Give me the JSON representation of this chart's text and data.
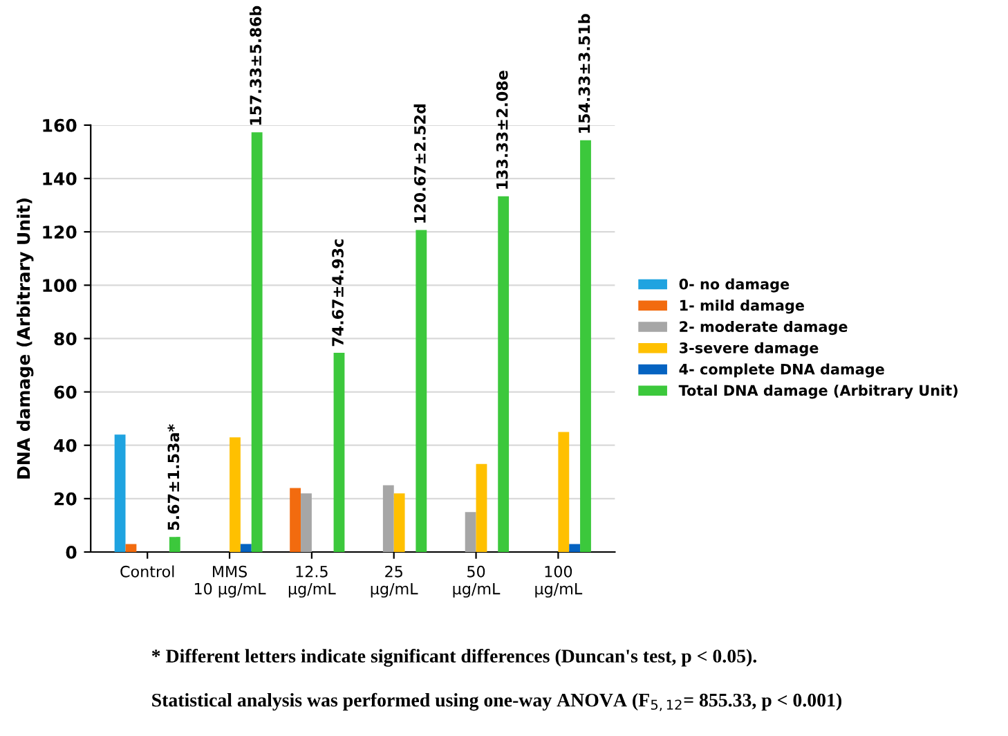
{
  "chart_data": {
    "type": "bar",
    "ylabel": "DNA damage (Arbitrary Unit)",
    "categories": [
      "Control",
      "MMS\n10 µg/mL",
      "12.5\nµg/mL",
      "25\nµg/mL",
      "50\nµg/mL",
      "100\nµg/mL"
    ],
    "series": [
      {
        "name": "0- no damage",
        "color": "#1fa3e0",
        "values": [
          44,
          0,
          0,
          0,
          0,
          0
        ]
      },
      {
        "name": "1- mild damage",
        "color": "#f26b0f",
        "values": [
          3,
          0,
          24,
          0,
          0,
          0
        ]
      },
      {
        "name": "2- moderate damage",
        "color": "#a6a6a6",
        "values": [
          0,
          0,
          22,
          25,
          15,
          0
        ]
      },
      {
        "name": "3-severe damage",
        "color": "#ffc000",
        "values": [
          0,
          43,
          0,
          22,
          33,
          45
        ]
      },
      {
        "name": "4- complete DNA damage",
        "color": "#0563c1",
        "values": [
          0,
          3,
          0,
          0,
          0,
          3
        ]
      },
      {
        "name": "Total DNA damage (Arbitrary Unit)",
        "color": "#3cc83c",
        "values": [
          5.67,
          157.33,
          74.67,
          120.67,
          133.33,
          154.33
        ],
        "value_labels": [
          "5.67±1.53a*",
          "157.33±5.86b",
          "74.67±4.93c",
          "120.67±2.52d",
          "133.33±2.08e",
          "154.33±3.51b"
        ]
      }
    ],
    "ylim": [
      0,
      160
    ],
    "yticks": [
      0,
      20,
      40,
      60,
      80,
      100,
      120,
      140,
      160
    ],
    "grid": "y",
    "legend": "right",
    "annotations": [
      "* Different letters indicate significant differences (Duncan's test, p < 0.05).",
      "Statistical analysis was performed using one-way ANOVA (F$_{5,12}$= 855.33, p < 0.001)"
    ]
  }
}
